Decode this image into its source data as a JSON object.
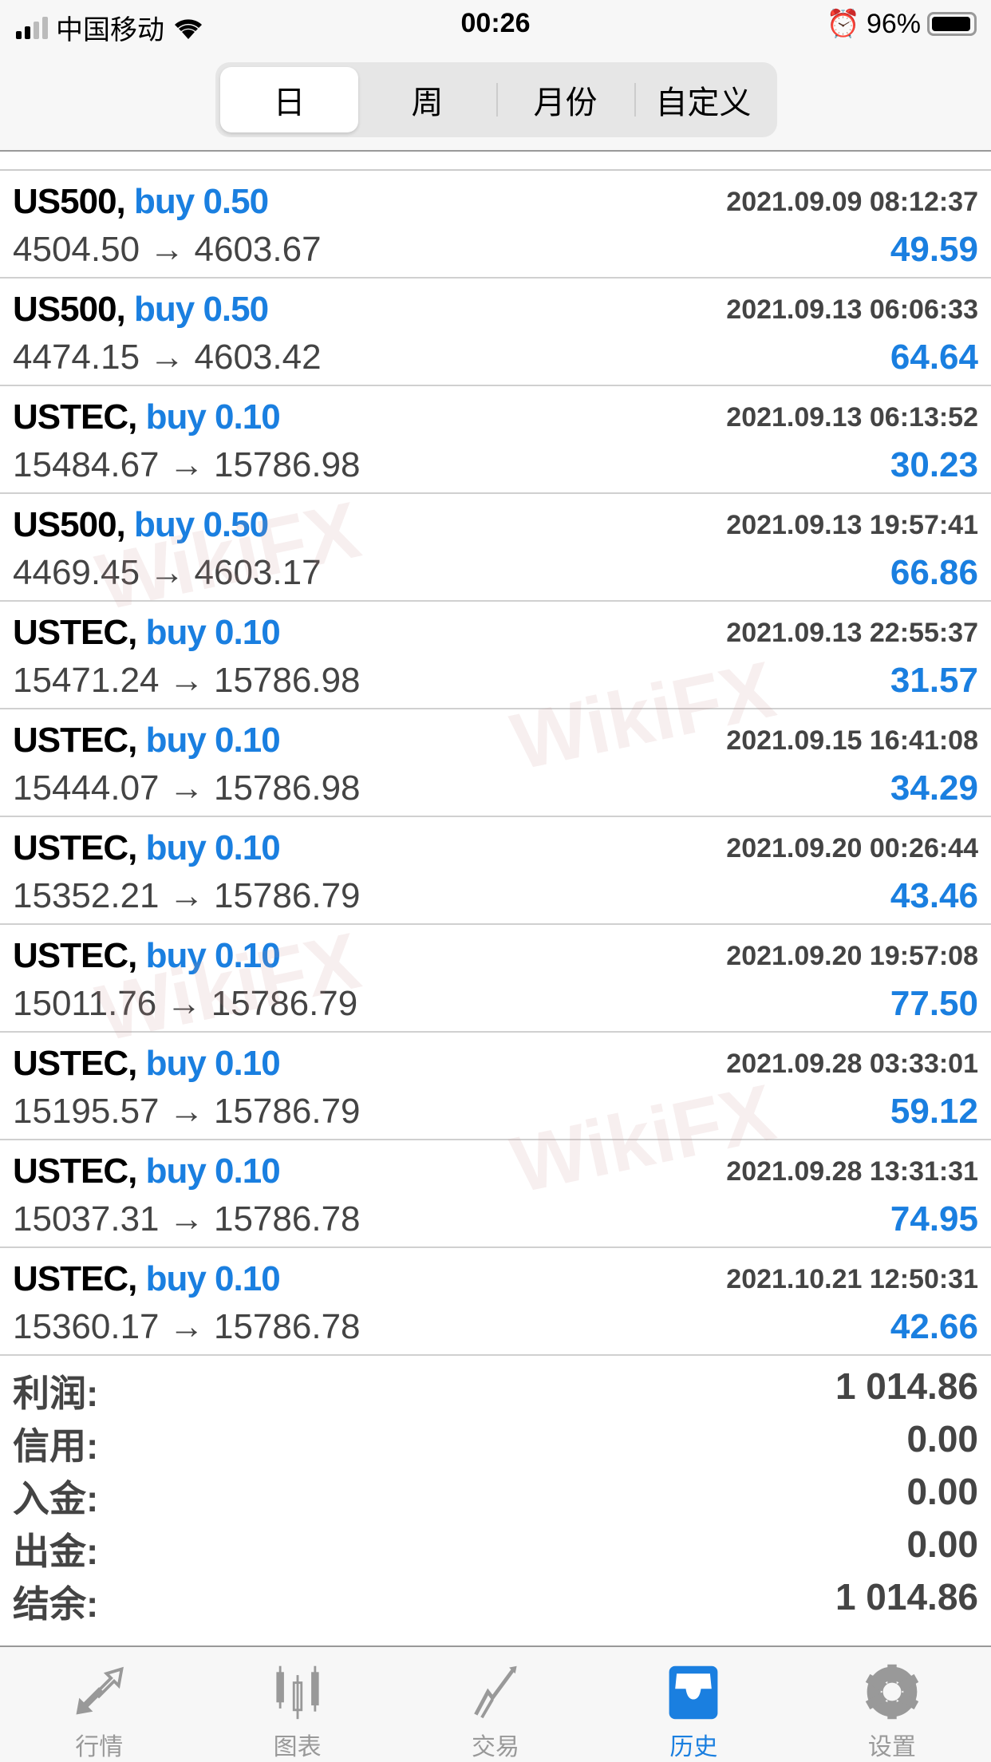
{
  "status_bar": {
    "carrier": "中国移动",
    "time": "00:26",
    "battery": "96%",
    "battery_level": 0.96
  },
  "segments": [
    {
      "label": "日",
      "active": true
    },
    {
      "label": "周"
    },
    {
      "label": "月份"
    },
    {
      "label": "自定义"
    }
  ],
  "trades": [
    {
      "symbol": "US500,",
      "type": "buy 0.50",
      "date": "2021.09.09 08:12:37",
      "open": "4504.50",
      "close": "4603.67",
      "profit": "49.59"
    },
    {
      "symbol": "US500,",
      "type": "buy 0.50",
      "date": "2021.09.13 06:06:33",
      "open": "4474.15",
      "close": "4603.42",
      "profit": "64.64"
    },
    {
      "symbol": "USTEC,",
      "type": "buy 0.10",
      "date": "2021.09.13 06:13:52",
      "open": "15484.67",
      "close": "15786.98",
      "profit": "30.23"
    },
    {
      "symbol": "US500,",
      "type": "buy 0.50",
      "date": "2021.09.13 19:57:41",
      "open": "4469.45",
      "close": "4603.17",
      "profit": "66.86"
    },
    {
      "symbol": "USTEC,",
      "type": "buy 0.10",
      "date": "2021.09.13 22:55:37",
      "open": "15471.24",
      "close": "15786.98",
      "profit": "31.57"
    },
    {
      "symbol": "USTEC,",
      "type": "buy 0.10",
      "date": "2021.09.15 16:41:08",
      "open": "15444.07",
      "close": "15786.98",
      "profit": "34.29"
    },
    {
      "symbol": "USTEC,",
      "type": "buy 0.10",
      "date": "2021.09.20 00:26:44",
      "open": "15352.21",
      "close": "15786.79",
      "profit": "43.46"
    },
    {
      "symbol": "USTEC,",
      "type": "buy 0.10",
      "date": "2021.09.20 19:57:08",
      "open": "15011.76",
      "close": "15786.79",
      "profit": "77.50"
    },
    {
      "symbol": "USTEC,",
      "type": "buy 0.10",
      "date": "2021.09.28 03:33:01",
      "open": "15195.57",
      "close": "15786.79",
      "profit": "59.12"
    },
    {
      "symbol": "USTEC,",
      "type": "buy 0.10",
      "date": "2021.09.28 13:31:31",
      "open": "15037.31",
      "close": "15786.78",
      "profit": "74.95"
    },
    {
      "symbol": "USTEC,",
      "type": "buy 0.10",
      "date": "2021.10.21 12:50:31",
      "open": "15360.17",
      "close": "15786.78",
      "profit": "42.66"
    }
  ],
  "summary": [
    {
      "label": "利润:",
      "value": "1 014.86"
    },
    {
      "label": "信用:",
      "value": "0.00"
    },
    {
      "label": "入金:",
      "value": "0.00"
    },
    {
      "label": "出金:",
      "value": "0.00"
    },
    {
      "label": "结余:",
      "value": "1 014.86"
    }
  ],
  "tabs": [
    {
      "label": "行情",
      "icon": "quotes-arrows-icon"
    },
    {
      "label": "图表",
      "icon": "candlestick-icon"
    },
    {
      "label": "交易",
      "icon": "trade-chart-icon"
    },
    {
      "label": "历史",
      "icon": "history-inbox-icon",
      "active": true
    },
    {
      "label": "设置",
      "icon": "gear-icon"
    }
  ],
  "watermark": "WikiFX",
  "colors": {
    "accent": "#1a7fe0",
    "inactive": "#999999"
  }
}
